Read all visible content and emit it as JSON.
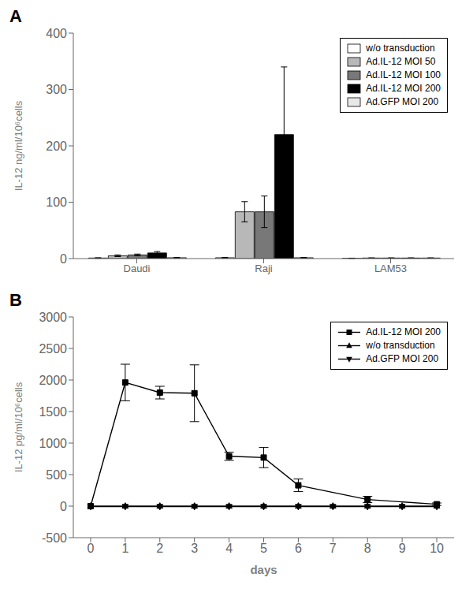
{
  "chart_data": [
    {
      "type": "bar",
      "title": "A",
      "ylabel": "IL-12 ng/ml/10⁶cells",
      "categories": [
        "Daudi",
        "Raji",
        "LAM53"
      ],
      "series": [
        {
          "name": "w/o transduction",
          "color": "#ffffff",
          "values": [
            1.0,
            1.5,
            0.5
          ],
          "errors": [
            0.5,
            0.5,
            0.3
          ]
        },
        {
          "name": "Ad.IL-12 MOI 50",
          "color": "#b8b8b8",
          "values": [
            5.0,
            83.0,
            1.0
          ],
          "errors": [
            1.5,
            18.0,
            0.3
          ]
        },
        {
          "name": "Ad.IL-12 MOI 100",
          "color": "#787878",
          "values": [
            6.5,
            83.0,
            1.0
          ],
          "errors": [
            1.5,
            28.0,
            0.3
          ]
        },
        {
          "name": "Ad.IL-12 MOI 200",
          "color": "#000000",
          "values": [
            10.0,
            220.0,
            1.0
          ],
          "errors": [
            2.5,
            120.0,
            0.3
          ]
        },
        {
          "name": "Ad.GFP MOI 200",
          "color": "#e8e8e8",
          "values": [
            1.5,
            1.5,
            1.0
          ],
          "errors": [
            0.5,
            0.5,
            0.3
          ]
        }
      ],
      "ylim": [
        0,
        400
      ],
      "yticks": [
        0,
        100,
        200,
        300,
        400
      ],
      "legend": "upper right",
      "grid": false
    },
    {
      "type": "line",
      "title": "B",
      "xlabel": "days",
      "ylabel": "IL-12 pg/ml/10⁶cells",
      "xlim": [
        -0.5,
        10.5
      ],
      "xticks": [
        0,
        1,
        2,
        3,
        4,
        5,
        6,
        7,
        8,
        9,
        10
      ],
      "ylim": [
        -500,
        3000
      ],
      "yticks": [
        -500,
        0,
        500,
        1000,
        1500,
        2000,
        2500,
        3000
      ],
      "series": [
        {
          "name": "Ad.IL-12 MOI 200",
          "color": "#000000",
          "marker": "square",
          "line_style": "solid",
          "x": [
            0,
            1,
            2,
            3,
            4,
            5,
            6,
            8,
            10
          ],
          "values": [
            0,
            1960,
            1800,
            1790,
            790,
            770,
            330,
            105,
            30
          ],
          "errors": [
            0,
            290,
            100,
            450,
            65,
            160,
            100,
            50,
            20
          ]
        },
        {
          "name": "w/o transduction",
          "color": "#000000",
          "marker": "triangle-up",
          "line_style": "solid",
          "x": [
            0,
            1,
            2,
            3,
            4,
            5,
            6,
            7,
            8,
            9,
            10
          ],
          "values": [
            2,
            2,
            2,
            2,
            2,
            2,
            2,
            2,
            2,
            2,
            2
          ],
          "errors": [
            0,
            0,
            0,
            0,
            0,
            0,
            0,
            0,
            0,
            0,
            0
          ]
        },
        {
          "name": "Ad.GFP MOI 200",
          "color": "#000000",
          "marker": "triangle-down",
          "line_style": "solid",
          "x": [
            0,
            1,
            2,
            3,
            4,
            5,
            6,
            7,
            8,
            9,
            10
          ],
          "values": [
            -8,
            -8,
            -8,
            -8,
            -8,
            -8,
            -8,
            -8,
            -8,
            -8,
            -8
          ],
          "errors": [
            0,
            0,
            0,
            0,
            0,
            0,
            0,
            0,
            0,
            0,
            0
          ]
        }
      ],
      "legend": "upper right",
      "grid": false
    }
  ]
}
